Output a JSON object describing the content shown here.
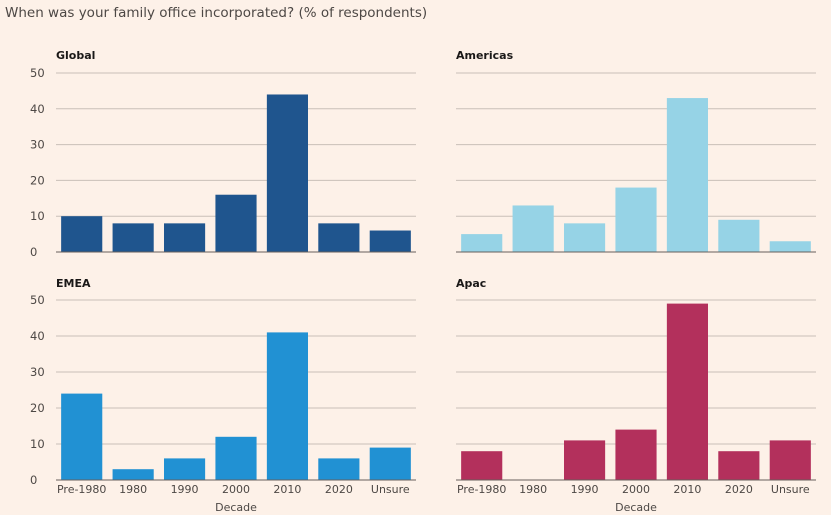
{
  "question": "When was your family office incorporated? (% of respondents)",
  "chart_data": [
    {
      "type": "bar",
      "title": "Global",
      "categories": [
        "Pre-1980",
        "1980",
        "1990",
        "2000",
        "2010",
        "2020",
        "Unsure"
      ],
      "values": [
        10,
        8,
        8,
        16,
        44,
        8,
        6
      ],
      "color": "#1f558e",
      "ylim": [
        0,
        50
      ],
      "yticks": [
        0,
        10,
        20,
        30,
        40,
        50
      ],
      "xlabel": "",
      "ylabel": "",
      "show_yticks": true,
      "show_xticks": false
    },
    {
      "type": "bar",
      "title": "Americas",
      "categories": [
        "Pre-1980",
        "1980",
        "1990",
        "2000",
        "2010",
        "2020",
        "Unsure"
      ],
      "values": [
        5,
        13,
        8,
        18,
        43,
        9,
        3
      ],
      "color": "#96d3e6",
      "ylim": [
        0,
        50
      ],
      "yticks": [
        0,
        10,
        20,
        30,
        40,
        50
      ],
      "xlabel": "",
      "ylabel": "",
      "show_yticks": false,
      "show_xticks": false
    },
    {
      "type": "bar",
      "title": "EMEA",
      "categories": [
        "Pre-1980",
        "1980",
        "1990",
        "2000",
        "2010",
        "2020",
        "Unsure"
      ],
      "values": [
        24,
        3,
        6,
        12,
        41,
        6,
        9
      ],
      "color": "#2191d3",
      "ylim": [
        0,
        50
      ],
      "yticks": [
        0,
        10,
        20,
        30,
        40,
        50
      ],
      "xlabel": "Decade",
      "ylabel": "",
      "show_yticks": true,
      "show_xticks": true
    },
    {
      "type": "bar",
      "title": "Apac",
      "categories": [
        "Pre-1980",
        "1980",
        "1990",
        "2000",
        "2010",
        "2020",
        "Unsure"
      ],
      "values": [
        8,
        0,
        11,
        14,
        49,
        8,
        11
      ],
      "color": "#b3305c",
      "ylim": [
        0,
        50
      ],
      "yticks": [
        0,
        10,
        20,
        30,
        40,
        50
      ],
      "xlabel": "Decade",
      "ylabel": "",
      "show_yticks": false,
      "show_xticks": true
    }
  ]
}
